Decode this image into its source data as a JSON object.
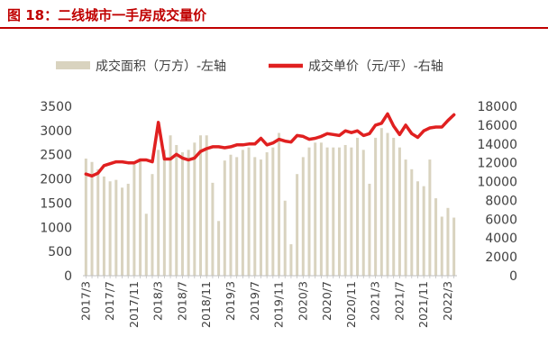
{
  "figure": {
    "title": "图 18：二线城市一手房成交量价"
  },
  "chart_data": {
    "type": "bar+line",
    "legend": {
      "placement": "top"
    },
    "x": [
      "2017/3",
      "2017/4",
      "2017/5",
      "2017/6",
      "2017/7",
      "2017/8",
      "2017/9",
      "2017/10",
      "2017/11",
      "2017/12",
      "2018/1",
      "2018/2",
      "2018/3",
      "2018/4",
      "2018/5",
      "2018/6",
      "2018/7",
      "2018/8",
      "2018/9",
      "2018/10",
      "2018/11",
      "2018/12",
      "2019/1",
      "2019/2",
      "2019/3",
      "2019/4",
      "2019/5",
      "2019/6",
      "2019/7",
      "2019/8",
      "2019/9",
      "2019/10",
      "2019/11",
      "2019/12",
      "2020/1",
      "2020/2",
      "2020/3",
      "2020/4",
      "2020/5",
      "2020/6",
      "2020/7",
      "2020/8",
      "2020/9",
      "2020/10",
      "2020/11",
      "2020/12",
      "2021/1",
      "2021/2",
      "2021/3",
      "2021/4",
      "2021/5",
      "2021/6",
      "2021/7",
      "2021/8",
      "2021/9",
      "2021/10",
      "2021/11",
      "2021/12",
      "2022/1",
      "2022/2",
      "2022/3",
      "2022/4"
    ],
    "x_tick_labels": [
      "2017/3",
      "2017/7",
      "2017/11",
      "2018/3",
      "2018/7",
      "2018/11",
      "2019/3",
      "2019/7",
      "2019/11",
      "2020/3",
      "2020/7",
      "2020/11",
      "2021/3",
      "2021/7",
      "2021/11",
      "2022/3"
    ],
    "series": [
      {
        "name": "成交面积（万方）-左轴",
        "kind": "bar",
        "axis": "left",
        "color": "#d9d3bf",
        "values": [
          2420,
          2350,
          2200,
          2050,
          1950,
          1980,
          1820,
          1900,
          2350,
          2420,
          1280,
          2100,
          2600,
          2600,
          2900,
          2700,
          2550,
          2600,
          2750,
          2900,
          2900,
          1920,
          1130,
          2380,
          2500,
          2450,
          2600,
          2650,
          2450,
          2400,
          2550,
          2650,
          2950,
          1550,
          650,
          2100,
          2450,
          2650,
          2750,
          2750,
          2650,
          2650,
          2650,
          2700,
          2650,
          2850,
          2600,
          1900,
          2850,
          3050,
          2950,
          2850,
          2650,
          2400,
          2200,
          1950,
          1850,
          2400,
          1600,
          1220,
          1400,
          1200
        ]
      },
      {
        "name": "成交单价（元/平）-右轴",
        "kind": "line",
        "axis": "right",
        "color": "#e02020",
        "values": [
          10800,
          10600,
          10900,
          11700,
          11900,
          12100,
          12100,
          12000,
          12000,
          12300,
          12300,
          12100,
          16300,
          12400,
          12400,
          12900,
          12500,
          12300,
          12500,
          13200,
          13500,
          13700,
          13700,
          13600,
          13700,
          13900,
          13900,
          14000,
          14000,
          14600,
          13900,
          14100,
          14500,
          14300,
          14200,
          14900,
          14800,
          14500,
          14600,
          14800,
          15100,
          15000,
          14900,
          15400,
          15200,
          15400,
          14900,
          15100,
          16000,
          16200,
          17200,
          15900,
          15000,
          16000,
          15100,
          14700,
          15400,
          15700,
          15800,
          15800,
          16500,
          17100
        ]
      }
    ],
    "y_left": {
      "min": 0,
      "max": 3500,
      "ticks": [
        0,
        500,
        1000,
        1500,
        2000,
        2500,
        3000,
        3500
      ]
    },
    "y_right": {
      "min": 0,
      "max": 18000,
      "ticks": [
        0,
        2000,
        4000,
        6000,
        8000,
        10000,
        12000,
        14000,
        16000,
        18000
      ]
    },
    "grid": false
  }
}
